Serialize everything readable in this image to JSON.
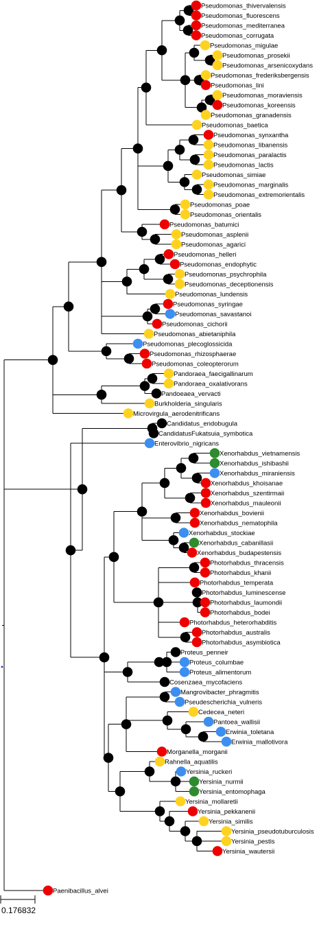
{
  "colors": {
    "red": "#ee0000",
    "yellow": "#ffd21f",
    "blue": "#3c8ff0",
    "green": "#2e8b2e",
    "black": "#000000",
    "root-marker": "#2233aa"
  },
  "scale_bar": {
    "label": "0.176832"
  },
  "tips": [
    {
      "name": "Pseudomonas_thivervalensis",
      "color": "red"
    },
    {
      "name": "Pseudomonas_fluorescens",
      "color": "red"
    },
    {
      "name": "Pseudomonas_mediterranea",
      "color": "red"
    },
    {
      "name": "Pseudomonas_corrugata",
      "color": "red"
    },
    {
      "name": "Pseudomonas_migulae",
      "color": "yellow"
    },
    {
      "name": "Pseudomonas_prosekii",
      "color": "yellow"
    },
    {
      "name": "Pseudomonas_arsenicoxydans",
      "color": "yellow"
    },
    {
      "name": "Pseudomonas_frederiksbergensis",
      "color": "yellow"
    },
    {
      "name": "Pseudomonas_lini",
      "color": "red"
    },
    {
      "name": "Pseudomonas_moraviensis",
      "color": "yellow"
    },
    {
      "name": "Pseudomonas_koreensis",
      "color": "red"
    },
    {
      "name": "Pseudomonas_granadensis",
      "color": "yellow"
    },
    {
      "name": "Pseudomonas_baetica",
      "color": "yellow"
    },
    {
      "name": "Pseudomonas_synxantha",
      "color": "red"
    },
    {
      "name": "Pseudomonas_libanensis",
      "color": "yellow"
    },
    {
      "name": "Pseudomonas_paralactis",
      "color": "yellow"
    },
    {
      "name": "Pseudomonas_lactis",
      "color": "yellow"
    },
    {
      "name": "Pseudomonas_simiae",
      "color": "yellow"
    },
    {
      "name": "Pseudomonas_marginalis",
      "color": "yellow"
    },
    {
      "name": "Pseudomonas_extremorientalis",
      "color": "yellow"
    },
    {
      "name": "Pseudomonas_poae",
      "color": "yellow"
    },
    {
      "name": "Pseudomonas_orientalis",
      "color": "yellow"
    },
    {
      "name": "Pseudomonas_batumici",
      "color": "red"
    },
    {
      "name": "Pseudomonas_asplenii",
      "color": "yellow"
    },
    {
      "name": "Pseudomonas_agarici",
      "color": "yellow"
    },
    {
      "name": "Pseudomonas_helleri",
      "color": "red"
    },
    {
      "name": "Pseudomonas_endophytic",
      "color": "red"
    },
    {
      "name": "Pseudomonas_psychrophila",
      "color": "yellow"
    },
    {
      "name": "Pseudomonas_deceptionensis",
      "color": "yellow"
    },
    {
      "name": "Pseudomonas_lundensis",
      "color": "yellow"
    },
    {
      "name": "Pseudomonas_syringae",
      "color": "red"
    },
    {
      "name": "Pseudomonas_savastanoi",
      "color": "blue"
    },
    {
      "name": "Pseudomonas_cichorii",
      "color": "red"
    },
    {
      "name": "Pseudomonas_abietaniphila",
      "color": "yellow"
    },
    {
      "name": "Pseudomonas_plecoglossicida",
      "color": "blue"
    },
    {
      "name": "Pseudomonas_rhizosphaerae",
      "color": "red"
    },
    {
      "name": "Pseudomonas_coleopterorum",
      "color": "red"
    },
    {
      "name": "Pandoraea_faecigallinarum",
      "color": "yellow"
    },
    {
      "name": "Pandoraea_oxalativorans",
      "color": "yellow"
    },
    {
      "name": "Pandoeaea_vervacti",
      "color": "black"
    },
    {
      "name": "Burkholderia_singularis",
      "color": "yellow"
    },
    {
      "name": "Microvirgula_aerodenitrificans",
      "color": "yellow"
    },
    {
      "name": "Candidatus_endobugula",
      "color": "black"
    },
    {
      "name": "CandidatusFukatsuia_symbotica",
      "color": "black"
    },
    {
      "name": "Enterovibrio_nigricans",
      "color": "blue"
    },
    {
      "name": "Xenorhabdus_vietnamensis",
      "color": "green"
    },
    {
      "name": "Xenorhabdus_ishibashii",
      "color": "green"
    },
    {
      "name": "Xenorhabdus_miraniensis",
      "color": "blue"
    },
    {
      "name": "Xenorhabdus_khoisanae",
      "color": "red"
    },
    {
      "name": "Xenorhabdus_szentirmaii",
      "color": "red"
    },
    {
      "name": "Xenorhabdus_mauleonii",
      "color": "red"
    },
    {
      "name": "Xenorhabdus_bovienii",
      "color": "red"
    },
    {
      "name": "Xenorhabdus_nematophila",
      "color": "red"
    },
    {
      "name": "Xenorhabdus_stockiae",
      "color": "blue"
    },
    {
      "name": "Xenorhabdus_cabanillasii",
      "color": "green"
    },
    {
      "name": "Xenorhabdus_budapestensis",
      "color": "red"
    },
    {
      "name": "Photorhabdus_thracensis",
      "color": "red"
    },
    {
      "name": "Photorhabdus_khanii",
      "color": "red"
    },
    {
      "name": "Photorhabdus_temperata",
      "color": "red"
    },
    {
      "name": "Photorhabdus_luminescense",
      "color": "black"
    },
    {
      "name": "Photorhabdus_laumondii",
      "color": "red"
    },
    {
      "name": "Photorhabdus_bodei",
      "color": "red"
    },
    {
      "name": "Photorhabdus_heterorhabditis",
      "color": "red"
    },
    {
      "name": "Photorhabdus_australis",
      "color": "red"
    },
    {
      "name": "Photorhabdus_asymbiotica",
      "color": "red"
    },
    {
      "name": "Proteus_penneir",
      "color": "black"
    },
    {
      "name": "Proteus_columbae",
      "color": "blue"
    },
    {
      "name": "Proteus_alimentorum",
      "color": "blue"
    },
    {
      "name": "Cosenzaea_mycofaciens",
      "color": "black"
    },
    {
      "name": "Mangrovibacter_phragmitis",
      "color": "blue"
    },
    {
      "name": "Pseudescherichia_vulneris",
      "color": "blue"
    },
    {
      "name": "Cedecea_neteri",
      "color": "yellow"
    },
    {
      "name": "Pantoea_wallisii",
      "color": "blue"
    },
    {
      "name": "Erwinia_toletana",
      "color": "blue"
    },
    {
      "name": "Erwinia_mallotivora",
      "color": "blue"
    },
    {
      "name": "Morganella_morganii",
      "color": "red"
    },
    {
      "name": "Rahnella_aquatilis",
      "color": "yellow"
    },
    {
      "name": "Yersinia_ruckeri",
      "color": "blue"
    },
    {
      "name": "Yersinia_nurmii",
      "color": "green"
    },
    {
      "name": "Yersinia_entomophaga",
      "color": "green"
    },
    {
      "name": "Yersinia_mollaretii",
      "color": "yellow"
    },
    {
      "name": "Yersinia_pekkanenii",
      "color": "red"
    },
    {
      "name": "Yersinia_similis",
      "color": "yellow"
    },
    {
      "name": "Yersinia_pseudotuburculosis",
      "color": "yellow"
    },
    {
      "name": "Yersinia_pestis",
      "color": "yellow"
    },
    {
      "name": "Yersinia_wautersii",
      "color": "red"
    },
    {
      "name": "Paenibacillus_alvei",
      "color": "red"
    }
  ]
}
